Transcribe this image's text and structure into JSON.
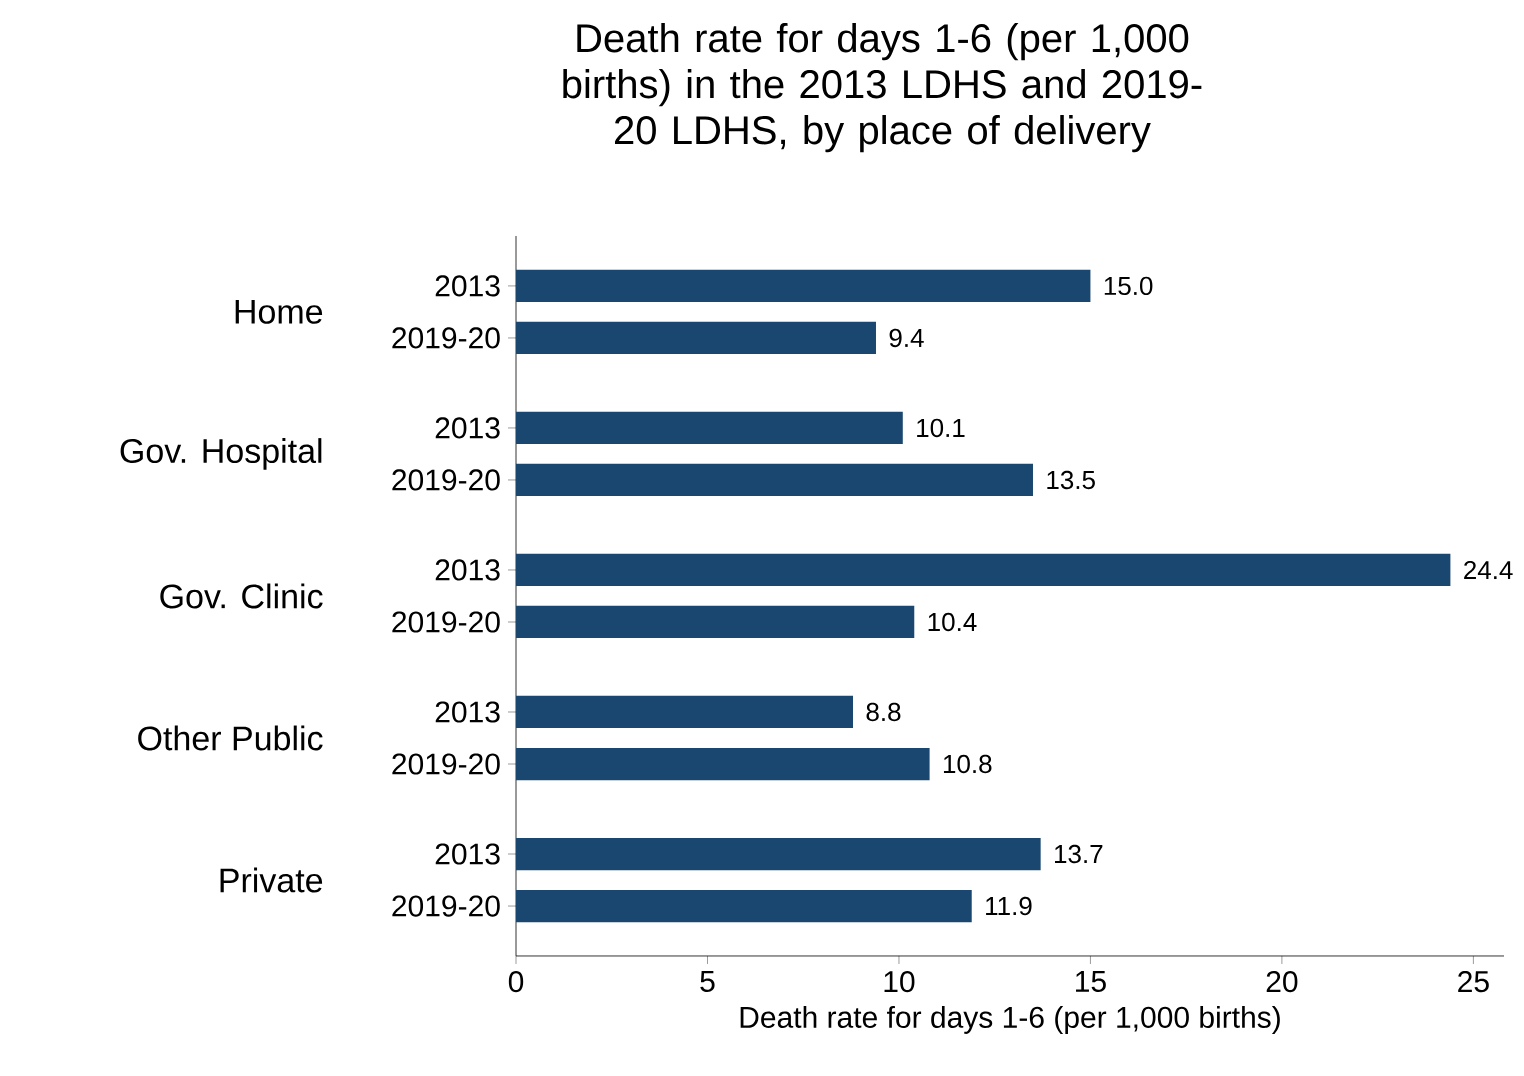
{
  "chart_data": {
    "type": "bar",
    "orientation": "horizontal",
    "title": "Death rate for days 1-6 (per 1,000 births) in the 2013 LDHS and 2019-20 LDHS, by place of delivery",
    "xlabel": "Death rate for days 1-6 (per 1,000 births)",
    "categories": [
      "2013",
      "2019-20",
      "2013",
      "2019-20",
      "2013",
      "2019-20",
      "2013",
      "2019-20",
      "2013",
      "2019-20"
    ],
    "values": [
      15.0,
      9.4,
      10.1,
      13.5,
      24.4,
      10.4,
      8.8,
      10.8,
      13.7,
      11.9
    ],
    "value_labels": [
      "15.0",
      "9.4",
      "10.1",
      "13.5",
      "24.4",
      "10.4",
      "8.8",
      "10.8",
      "13.7",
      "11.9"
    ],
    "annotations": [
      "Home",
      "Gov. Hospital",
      "Gov. Clinic",
      "Other Public",
      "Private"
    ],
    "color": "#1a476f",
    "xlim": [
      0,
      25.8
    ],
    "xticks": [
      0,
      5,
      10,
      15,
      20,
      25
    ]
  }
}
